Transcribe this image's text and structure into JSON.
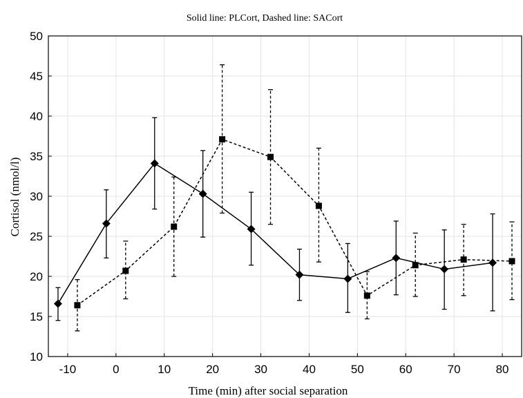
{
  "chart_data": {
    "type": "line",
    "title": "Solid line: PLCort, Dashed line: SACort",
    "xlabel": "Time (min) after social separation",
    "ylabel": "Cortisol (nmol/l)",
    "xlim": [
      -14,
      84
    ],
    "ylim": [
      10,
      50
    ],
    "xticks": [
      -10,
      0,
      10,
      20,
      30,
      40,
      50,
      60,
      70,
      80
    ],
    "yticks": [
      10,
      15,
      20,
      25,
      30,
      35,
      40,
      45,
      50
    ],
    "grid": true,
    "series": [
      {
        "name": "PLCort",
        "line_style": "solid",
        "marker": "diamond",
        "x": [
          -12,
          -2,
          8,
          18,
          28,
          38,
          48,
          58,
          68,
          78
        ],
        "y": [
          16.6,
          26.6,
          34.1,
          30.3,
          25.9,
          20.2,
          19.7,
          22.3,
          20.9,
          21.7
        ],
        "err_low": [
          14.5,
          22.3,
          28.4,
          24.9,
          21.4,
          17.0,
          15.5,
          17.7,
          15.9,
          15.7
        ],
        "err_high": [
          18.6,
          30.8,
          39.8,
          35.7,
          30.5,
          23.4,
          24.1,
          26.9,
          25.8,
          27.8
        ]
      },
      {
        "name": "SACort",
        "line_style": "dashed",
        "marker": "square",
        "x": [
          -8,
          2,
          12,
          22,
          32,
          42,
          52,
          62,
          72,
          82
        ],
        "y": [
          16.4,
          20.7,
          26.2,
          37.1,
          34.9,
          28.8,
          17.6,
          21.4,
          22.1,
          21.9
        ],
        "err_low": [
          13.2,
          17.2,
          20.0,
          27.9,
          26.5,
          21.8,
          14.7,
          17.5,
          17.6,
          17.1
        ],
        "err_high": [
          19.6,
          24.4,
          32.4,
          46.4,
          43.3,
          36.0,
          20.6,
          25.4,
          26.5,
          26.8
        ]
      }
    ]
  }
}
